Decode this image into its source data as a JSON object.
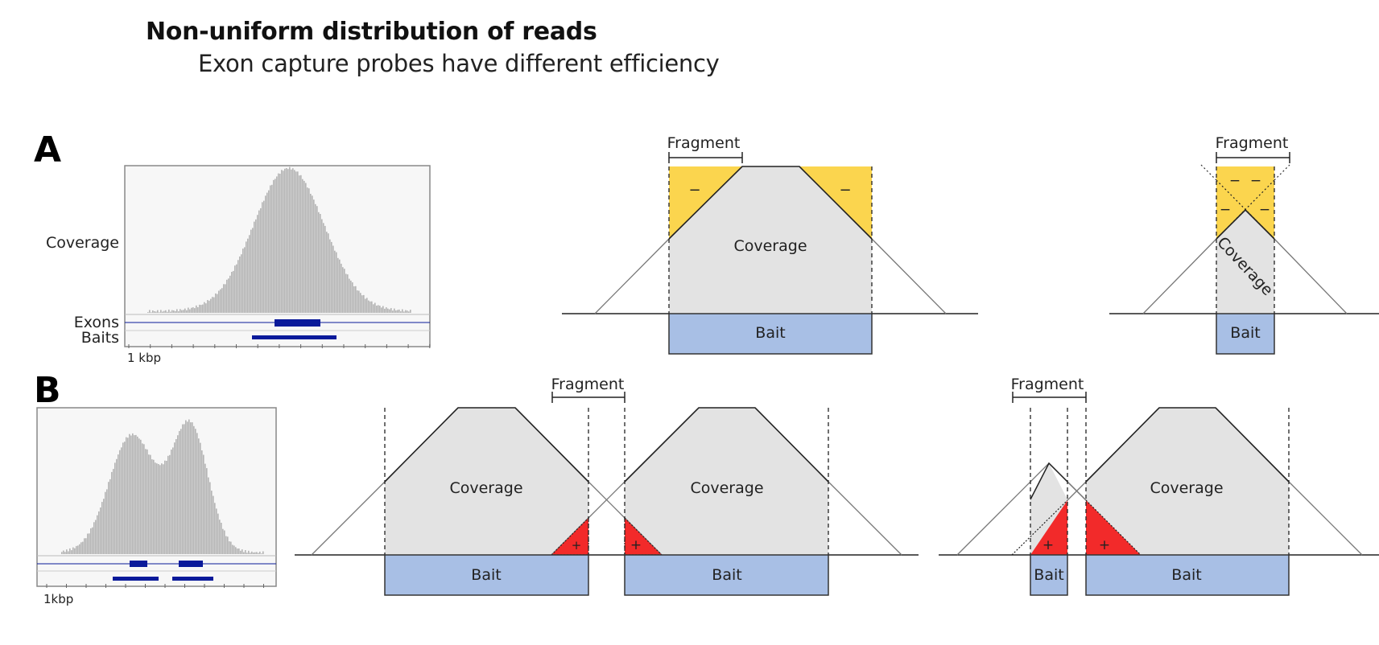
{
  "title": "Non-uniform distribution of reads",
  "subtitle": "Exon capture probes have different efficiency",
  "panels": {
    "a": {
      "letter": "A",
      "igv": {
        "coverage_label": "Coverage",
        "exons_label": "Exons",
        "baits_label": "Baits",
        "scale_label": "1 kbp"
      },
      "left": {
        "fragment_label": "Fragment",
        "coverage_label": "Coverage",
        "bait_label": "Bait",
        "minus": "−"
      },
      "right": {
        "fragment_label": "Fragment",
        "coverage_label": "Coverage",
        "bait_label": "Bait",
        "minus": "−"
      }
    },
    "b": {
      "letter": "B",
      "igv": {
        "scale_label": "1kbp"
      },
      "left": {
        "fragment_label": "Fragment",
        "coverage_label_1": "Coverage",
        "coverage_label_2": "Coverage",
        "bait_label_1": "Bait",
        "bait_label_2": "Bait",
        "plus": "+"
      },
      "right": {
        "fragment_label": "Fragment",
        "coverage_label": "Coverage",
        "bait_label_1": "Bait",
        "bait_label_2": "Bait",
        "plus": "+"
      }
    }
  },
  "colors": {
    "coverage_fill": "#e3e3e3",
    "bait_fill": "#a8bfe5",
    "minus_fill": "#fbd54e",
    "plus_fill": "#f22a2a",
    "igv_bar": "#b4b4b4",
    "igv_feature": "#0a1a9a"
  }
}
